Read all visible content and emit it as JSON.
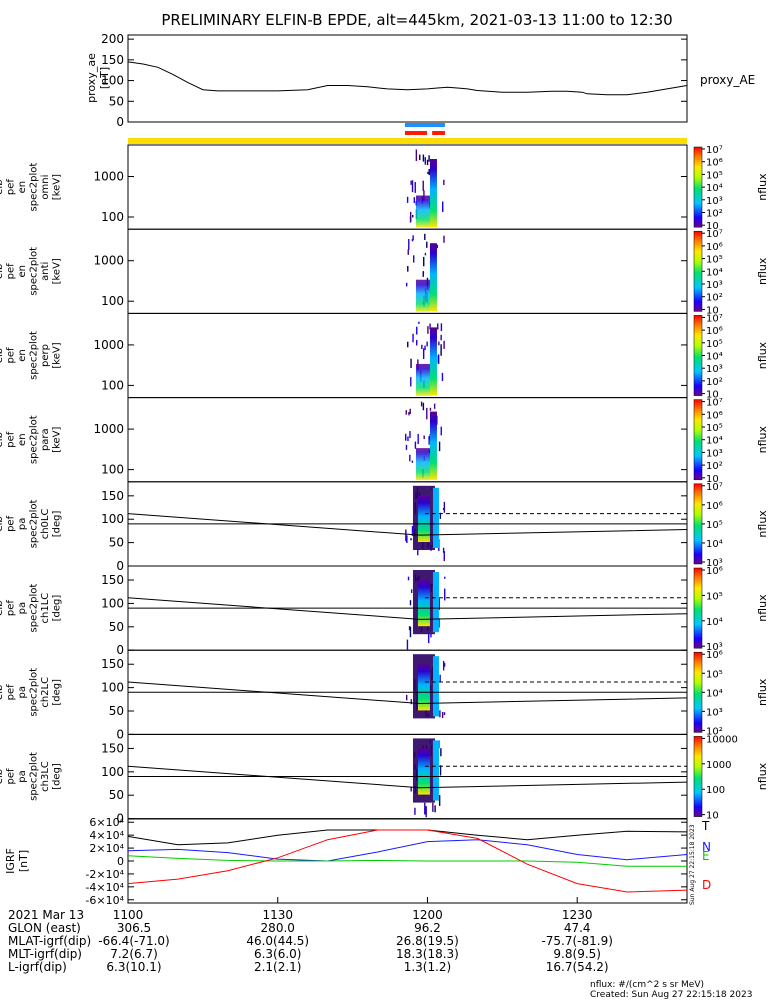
{
  "title": "PRELIMINARY ELFIN-B EPDE, alt=445km, 2021-03-13 11:00 to 12:30",
  "footer": {
    "units": "nflux: #/(cm^2 s sr MeV)",
    "created": "Created: Sun Aug 27 22:15:18 2023",
    "side_stamp": "Sun Aug 27 22:15:18 2023"
  },
  "colors": {
    "indicator_yellow": "#ffdd00",
    "indicator_blue": "#1e8fff",
    "indicator_red": "#ff1a00",
    "T": "#000000",
    "N": "#1a1aff",
    "E": "#00cc00",
    "D": "#ff0000"
  },
  "time_axis": {
    "ticks": [
      "1100",
      "1130",
      "1200",
      "1230"
    ],
    "date_label": "2021 Mar 13",
    "rows": [
      {
        "label": "GLON (east)",
        "values": [
          "306.5",
          "280.0",
          "96.2",
          "47.4"
        ]
      },
      {
        "label": "MLAT-igrf(dip)",
        "values": [
          "-66.4(-71.0)",
          "46.0(44.5)",
          "26.8(19.5)",
          "-75.7(-81.9)"
        ]
      },
      {
        "label": "MLT-igrf(dip)",
        "values": [
          "7.2(6.7)",
          "6.3(6.0)",
          "18.3(18.3)",
          "9.8(9.5)"
        ]
      },
      {
        "label": "L-igrf(dip)",
        "values": [
          "6.3(10.1)",
          "2.1(2.1)",
          "1.3(1.2)",
          "16.7(54.2)"
        ]
      }
    ]
  },
  "chart_data": [
    {
      "type": "line",
      "panel": "proxy_ae",
      "ylabel_lines": [
        "proxy_ae",
        "[nT]"
      ],
      "series_label": "proxy_AE",
      "yticks": [
        "0",
        "50",
        "100",
        "150",
        "200"
      ],
      "ylim": [
        0,
        210
      ],
      "x_minutes": [
        0,
        3,
        6,
        9,
        12,
        15,
        18,
        21,
        24,
        30,
        36,
        40,
        44,
        48,
        52,
        56,
        60,
        62,
        64,
        66,
        68,
        70,
        75,
        80,
        85,
        88,
        91,
        92,
        96,
        100,
        104,
        108,
        112
      ],
      "values": [
        145,
        140,
        132,
        115,
        95,
        78,
        75,
        75,
        75,
        75,
        78,
        88,
        88,
        85,
        80,
        78,
        80,
        82,
        84,
        82,
        80,
        76,
        72,
        72,
        74,
        74,
        72,
        68,
        66,
        66,
        72,
        80,
        88
      ]
    },
    {
      "type": "heatmap",
      "panels": [
        {
          "name": "en omni",
          "ylabel_lines": [
            "elb",
            "pef",
            "en",
            "spec2plot",
            "omni",
            "[keV]"
          ],
          "yticks": [
            "100",
            "1000"
          ],
          "cbar_ticks": [
            "10",
            "10²",
            "10³",
            "10⁴",
            "10⁵",
            "10⁶",
            "10⁷"
          ],
          "cbar_label": "nflux"
        },
        {
          "name": "en anti",
          "ylabel_lines": [
            "elb",
            "pef",
            "en",
            "spec2plot",
            "anti",
            "[keV]"
          ],
          "yticks": [
            "100",
            "1000"
          ],
          "cbar_ticks": [
            "10",
            "10²",
            "10³",
            "10⁴",
            "10⁵",
            "10⁶",
            "10⁷"
          ],
          "cbar_label": "nflux"
        },
        {
          "name": "en perp",
          "ylabel_lines": [
            "elb",
            "pef",
            "en",
            "spec2plot",
            "perp",
            "[keV]"
          ],
          "yticks": [
            "100",
            "1000"
          ],
          "cbar_ticks": [
            "10",
            "10²",
            "10³",
            "10⁴",
            "10⁵",
            "10⁶",
            "10⁷"
          ],
          "cbar_label": "nflux"
        },
        {
          "name": "en para",
          "ylabel_lines": [
            "elb",
            "pef",
            "en",
            "spec2plot",
            "para",
            "[keV]"
          ],
          "yticks": [
            "100",
            "1000"
          ],
          "cbar_ticks": [
            "10",
            "10²",
            "10³",
            "10⁴",
            "10⁵",
            "10⁶",
            "10⁷"
          ],
          "cbar_label": "nflux"
        },
        {
          "name": "pa ch0LC",
          "ylabel_lines": [
            "elb",
            "pef",
            "pa",
            "spec2plot",
            "ch0LC",
            "[deg]"
          ],
          "yticks": [
            "0",
            "50",
            "100",
            "150"
          ],
          "cbar_ticks": [
            "10³",
            "10⁴",
            "10⁵",
            "10⁶",
            "10⁷"
          ],
          "cbar_label": "nflux"
        },
        {
          "name": "pa ch1LC",
          "ylabel_lines": [
            "elb",
            "pef",
            "pa",
            "spec2plot",
            "ch1LC",
            "[deg]"
          ],
          "yticks": [
            "0",
            "50",
            "100",
            "150"
          ],
          "cbar_ticks": [
            "10³",
            "10⁴",
            "10⁵",
            "10⁶"
          ],
          "cbar_label": "nflux"
        },
        {
          "name": "pa ch2LC",
          "ylabel_lines": [
            "elb",
            "pef",
            "pa",
            "spec2plot",
            "ch2LC",
            "[deg]"
          ],
          "yticks": [
            "0",
            "50",
            "100",
            "150"
          ],
          "cbar_ticks": [
            "10²",
            "10³",
            "10⁴",
            "10⁵",
            "10⁶"
          ],
          "cbar_label": "nflux"
        },
        {
          "name": "pa ch3LC",
          "ylabel_lines": [
            "elb",
            "pef",
            "pa",
            "spec2plot",
            "ch3LC",
            "[deg]"
          ],
          "yticks": [
            "0",
            "50",
            "100",
            "150"
          ],
          "cbar_ticks": [
            "10",
            "100",
            "1000",
            "10000"
          ],
          "cbar_label": "nflux"
        }
      ],
      "active_interval_minutes": [
        55.5,
        63.5
      ]
    },
    {
      "type": "line",
      "panel": "IGRF",
      "ylabel_lines": [
        "IGRF",
        "[nT]"
      ],
      "yticks": [
        "-6×10⁴",
        "-4×10⁴",
        "-2×10⁴",
        "0",
        "2×10⁴",
        "4×10⁴",
        "6×10⁴"
      ],
      "ylim": [
        -65000,
        65000
      ],
      "series": [
        {
          "name": "T",
          "x_minutes": [
            0,
            10,
            20,
            30,
            40,
            50,
            60,
            70,
            80,
            90,
            100,
            112
          ],
          "values": [
            38000,
            25000,
            28000,
            40000,
            48000,
            48000,
            48000,
            40000,
            33000,
            40000,
            46000,
            45000
          ]
        },
        {
          "name": "N",
          "x_minutes": [
            0,
            10,
            20,
            30,
            40,
            50,
            60,
            70,
            80,
            90,
            100,
            112
          ],
          "values": [
            16000,
            18000,
            13000,
            3000,
            0,
            14000,
            30000,
            33000,
            25000,
            10000,
            2000,
            10000
          ]
        },
        {
          "name": "E",
          "x_minutes": [
            0,
            10,
            20,
            30,
            40,
            50,
            60,
            70,
            80,
            90,
            100,
            112
          ],
          "values": [
            8000,
            4000,
            1000,
            0,
            0,
            1000,
            0,
            0,
            0,
            -2000,
            -8000,
            -8000
          ]
        },
        {
          "name": "D",
          "x_minutes": [
            0,
            10,
            20,
            30,
            40,
            50,
            60,
            70,
            80,
            90,
            100,
            112
          ],
          "values": [
            -35000,
            -28000,
            -15000,
            5000,
            33000,
            48000,
            48000,
            35000,
            -5000,
            -35000,
            -48000,
            -45000
          ]
        }
      ]
    }
  ]
}
